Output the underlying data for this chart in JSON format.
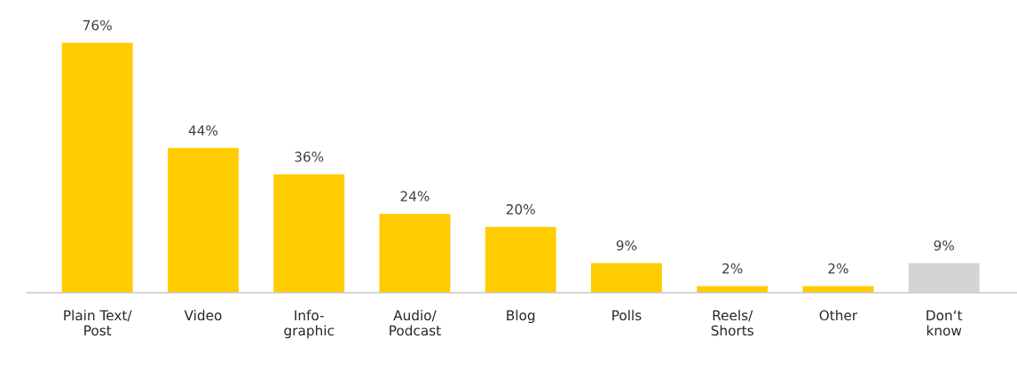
{
  "chart_data": {
    "type": "bar",
    "categories": [
      "Plain Text/\nPost",
      "Video",
      "Info-\ngraphic",
      "Audio/\nPodcast",
      "Blog",
      "Polls",
      "Reels/\nShorts",
      "Other",
      "Don‘t\nknow"
    ],
    "values": [
      76,
      44,
      36,
      24,
      20,
      9,
      2,
      2,
      9
    ],
    "value_labels": [
      "76%",
      "44%",
      "36%",
      "24%",
      "20%",
      "9%",
      "2%",
      "2%",
      "9%"
    ],
    "colors": [
      "#ffcc00",
      "#ffcc00",
      "#ffcc00",
      "#ffcc00",
      "#ffcc00",
      "#ffcc00",
      "#ffcc00",
      "#ffcc00",
      "#d4d4d4"
    ],
    "grid": false,
    "legend": false,
    "tick_labels": "x"
  }
}
